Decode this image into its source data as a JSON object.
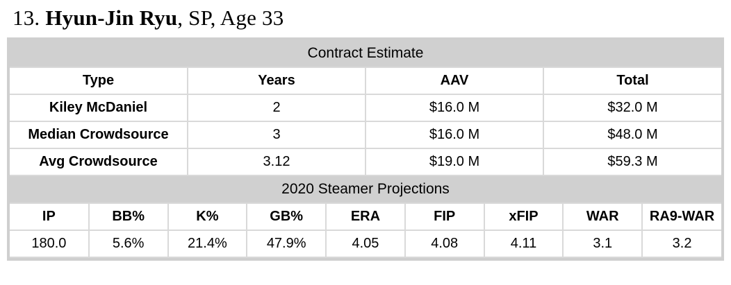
{
  "title": {
    "rank": "13.",
    "player": "Hyun-Jin Ryu",
    "suffix": ", SP, Age 33"
  },
  "contract": {
    "section_title": "Contract Estimate",
    "columns": [
      "Type",
      "Years",
      "AAV",
      "Total"
    ],
    "rows": [
      {
        "type": "Kiley McDaniel",
        "years": "2",
        "aav": "$16.0 M",
        "total": "$32.0 M"
      },
      {
        "type": "Median Crowdsource",
        "years": "3",
        "aav": "$16.0 M",
        "total": "$48.0 M"
      },
      {
        "type": "Avg Crowdsource",
        "years": "3.12",
        "aav": "$19.0 M",
        "total": "$59.3 M"
      }
    ]
  },
  "projections": {
    "section_title": "2020 Steamer Projections",
    "columns": [
      "IP",
      "BB%",
      "K%",
      "GB%",
      "ERA",
      "FIP",
      "xFIP",
      "WAR",
      "RA9-WAR"
    ],
    "values": [
      "180.0",
      "5.6%",
      "21.4%",
      "47.9%",
      "4.05",
      "4.08",
      "4.11",
      "3.1",
      "3.2"
    ]
  },
  "colors": {
    "band_background": "#d0d0d0",
    "cell_border": "#d9d9d9",
    "outer_border": "#cfcfcf",
    "text": "#000000",
    "page_background": "#ffffff"
  }
}
